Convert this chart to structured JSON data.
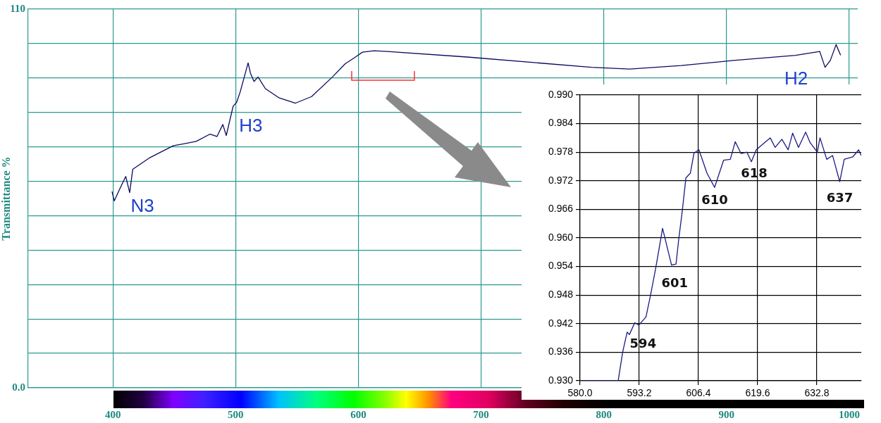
{
  "chart_data": [
    {
      "type": "line",
      "ylabel": "Transmittance %",
      "marker": "none",
      "grid": true,
      "xlim": [
        331,
        1007
      ],
      "ylim": [
        0,
        110
      ],
      "xticks": [
        400,
        500,
        600,
        700,
        800,
        900,
        1000
      ],
      "yticks": [
        {
          "value": 0,
          "label": "0.0"
        },
        {
          "value": 10,
          "label": null
        },
        {
          "value": 20,
          "label": null
        },
        {
          "value": 30,
          "label": null
        },
        {
          "value": 40,
          "label": null
        },
        {
          "value": 50,
          "label": null
        },
        {
          "value": 60,
          "label": null
        },
        {
          "value": 70,
          "label": null
        },
        {
          "value": 80,
          "label": null
        },
        {
          "value": 90,
          "label": null
        },
        {
          "value": 100,
          "label": null
        },
        110
      ],
      "x": [
        399.3,
        401.1,
        406.8,
        410.5,
        413.7,
        416.2,
        430.3,
        449.1,
        467.9,
        479.2,
        484.8,
        489.6,
        492.4,
        498.0,
        500.8,
        503.7,
        510.2,
        512.1,
        515.0,
        518.3,
        524.3,
        535.6,
        548.8,
        561.9,
        578.9,
        589.2,
        597.7,
        603.3,
        612.8,
        623.6,
        688.5,
        790,
        821,
        863,
        905.6,
        956.3,
        976,
        980.3,
        984.6,
        989.3,
        993
      ],
      "series": [
        {
          "color": "#0a0a60",
          "values": [
            57.0,
            54.3,
            58.7,
            61.4,
            56.7,
            63.5,
            66.9,
            70.3,
            71.6,
            73.7,
            73.0,
            76.5,
            73.3,
            81.8,
            82.9,
            85.9,
            94.4,
            91.4,
            89.0,
            90.3,
            86.9,
            84.2,
            82.7,
            84.6,
            90.3,
            94.1,
            96.1,
            97.5,
            97.9,
            97.7,
            96.1,
            93.1,
            92.6,
            93.6,
            95.1,
            96.6,
            97.7,
            93.1,
            95.1,
            99.7,
            96.6
          ]
        }
      ],
      "annotations": [
        {
          "text": "N3",
          "x": 413.7,
          "y": 56.7
        },
        {
          "text": "H3",
          "x": 498.0,
          "y": 81.8
        },
        {
          "text": "H2",
          "x": 980.3,
          "y": 93.1
        }
      ]
    },
    {
      "type": "line",
      "marker": "none",
      "grid": true,
      "xlim": [
        580,
        642.7
      ],
      "ylim": [
        0.93,
        0.99
      ],
      "xticks": [
        {
          "value": 580,
          "label": "580.0"
        },
        593.2,
        606.4,
        619.6,
        632.8
      ],
      "yticks": [
        {
          "value": 0.93,
          "label": "0.930"
        },
        0.936,
        0.942,
        0.948,
        0.954,
        {
          "value": 0.96,
          "label": "0.960"
        },
        0.966,
        0.972,
        0.978,
        0.984,
        {
          "value": 0.99,
          "label": "0.990"
        }
      ],
      "x": [
        580,
        588.5,
        589.5,
        590.5,
        591.0,
        592.2,
        593.1,
        594.7,
        595.7,
        596.8,
        597.8,
        598.4,
        600.4,
        601.4,
        602.0,
        602.8,
        603.6,
        604.6,
        605.4,
        606.5,
        608.3,
        610.0,
        612.0,
        613.5,
        614.6,
        615.9,
        617.2,
        618.2,
        619.3,
        621.4,
        622.4,
        623.5,
        625.0,
        626.4,
        627.4,
        628.7,
        630.3,
        631.3,
        632.9,
        633.5,
        635.0,
        636.3,
        637.9,
        638.9,
        640.8,
        642.1,
        642.7
      ],
      "series": [
        {
          "color": "#1a1a80",
          "values": [
            0.93,
            0.93,
            0.936,
            0.9402,
            0.9397,
            0.9422,
            0.9417,
            0.9434,
            0.9479,
            0.9533,
            0.9587,
            0.962,
            0.9543,
            0.9545,
            0.9597,
            0.9657,
            0.9726,
            0.9736,
            0.9778,
            0.9785,
            0.9736,
            0.9706,
            0.9763,
            0.9765,
            0.9802,
            0.9777,
            0.978,
            0.976,
            0.9785,
            0.9802,
            0.981,
            0.979,
            0.9807,
            0.9785,
            0.982,
            0.979,
            0.9822,
            0.98,
            0.978,
            0.981,
            0.9765,
            0.9773,
            0.9718,
            0.9765,
            0.977,
            0.9785,
            0.9773
          ]
        }
      ],
      "annotations": [
        {
          "text": "594",
          "x": 593.1,
          "y": 0.9417
        },
        {
          "text": "601",
          "x": 601.4,
          "y": 0.9545
        },
        {
          "text": "610",
          "x": 610.0,
          "y": 0.9706
        },
        {
          "text": "618",
          "x": 618.2,
          "y": 0.976
        },
        {
          "text": "637",
          "x": 637.9,
          "y": 0.9718
        }
      ]
    }
  ]
}
